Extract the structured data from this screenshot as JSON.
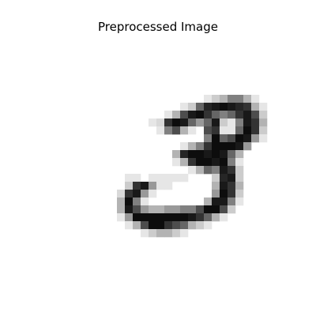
{
  "title": "Preprocessed Image",
  "image": {
    "description_icon": "handwritten-digit-icon",
    "colormap": "gray_r",
    "grid_size": 28,
    "pixels": [
      [
        0,
        0,
        0,
        0,
        0,
        0,
        0,
        0,
        0,
        0,
        0,
        0,
        0,
        0,
        0,
        0,
        0,
        0,
        0,
        0,
        0,
        0,
        0,
        0,
        0,
        0,
        0,
        0
      ],
      [
        0,
        0,
        0,
        0,
        0,
        0,
        0,
        0,
        0,
        0,
        0,
        0,
        0,
        0,
        0,
        0,
        0,
        0,
        0,
        0,
        0,
        0,
        0,
        0,
        0,
        0,
        0,
        0
      ],
      [
        0,
        0,
        0,
        0,
        0,
        0,
        0,
        0,
        0,
        0,
        0,
        0,
        0,
        0,
        0,
        0,
        0,
        0,
        0,
        0,
        0,
        0,
        0,
        0,
        0,
        0,
        0,
        0
      ],
      [
        0,
        0,
        0,
        0,
        0,
        0,
        0,
        0,
        0,
        0,
        0,
        0,
        0,
        0,
        0,
        0,
        0,
        0,
        0,
        0,
        0,
        0,
        0,
        0,
        0,
        0,
        0,
        0
      ],
      [
        0,
        0,
        0,
        0,
        0,
        0,
        0,
        0,
        0,
        0,
        0,
        0,
        0,
        0,
        0,
        0,
        0,
        0,
        0,
        0,
        0,
        0,
        0,
        0,
        0,
        0,
        0,
        0
      ],
      [
        0,
        0,
        0,
        0,
        0,
        0,
        0,
        0,
        0,
        0,
        0,
        0,
        0,
        0,
        0,
        0,
        0,
        0,
        0,
        0,
        0,
        0,
        0,
        0,
        0,
        0,
        0,
        0
      ],
      [
        0,
        0,
        0,
        0,
        0,
        0,
        0,
        0,
        0,
        0,
        0,
        0,
        0,
        0,
        0,
        0,
        0,
        0.1,
        0.2,
        0.3,
        0.5,
        0.5,
        0.3,
        0.1,
        0,
        0,
        0,
        0
      ],
      [
        0,
        0,
        0,
        0,
        0,
        0,
        0,
        0,
        0,
        0,
        0,
        0,
        0,
        0,
        0.1,
        0.2,
        0.6,
        0.85,
        0.9,
        0.95,
        0.9,
        0.85,
        0.8,
        0.3,
        0.1,
        0,
        0,
        0
      ],
      [
        0,
        0,
        0,
        0,
        0,
        0,
        0,
        0,
        0,
        0,
        0,
        0,
        0.1,
        0.3,
        0.7,
        0.9,
        0.95,
        0.8,
        0.6,
        0.5,
        0.6,
        0.8,
        0.9,
        0.7,
        0.2,
        0,
        0,
        0
      ],
      [
        0,
        0,
        0,
        0,
        0,
        0,
        0,
        0,
        0,
        0,
        0.1,
        0.15,
        0.8,
        0.95,
        0.9,
        0.6,
        0.4,
        0.6,
        0.9,
        0.2,
        0.1,
        0.5,
        0.9,
        0.8,
        0.3,
        0,
        0,
        0
      ],
      [
        0,
        0,
        0,
        0,
        0,
        0,
        0,
        0,
        0,
        0,
        0,
        0.1,
        0.5,
        0.7,
        0.3,
        0.1,
        0,
        0.7,
        0.8,
        0.1,
        0.1,
        0.6,
        0.95,
        0.8,
        0.2,
        0,
        0,
        0
      ],
      [
        0,
        0,
        0,
        0,
        0,
        0,
        0,
        0,
        0,
        0,
        0,
        0,
        0,
        0,
        0,
        0,
        0,
        0.5,
        0.95,
        0.6,
        0.7,
        0.95,
        0.9,
        0.4,
        0.1,
        0,
        0,
        0
      ],
      [
        0,
        0,
        0,
        0,
        0,
        0,
        0,
        0,
        0,
        0,
        0,
        0,
        0,
        0,
        0.1,
        0.3,
        0.5,
        0.8,
        0.95,
        0.95,
        0.95,
        0.9,
        0.4,
        0,
        0,
        0,
        0,
        0
      ],
      [
        0,
        0,
        0,
        0,
        0,
        0,
        0,
        0,
        0,
        0,
        0,
        0,
        0,
        0.3,
        0.85,
        0.95,
        0.95,
        0.9,
        0.95,
        0.9,
        0.6,
        0.3,
        0,
        0,
        0,
        0,
        0,
        0
      ],
      [
        0,
        0,
        0,
        0,
        0,
        0,
        0,
        0,
        0,
        0,
        0,
        0,
        0,
        0.1,
        0.3,
        0.8,
        0.95,
        0.95,
        0.9,
        0.95,
        0.5,
        0.1,
        0,
        0,
        0,
        0,
        0,
        0
      ],
      [
        0,
        0,
        0,
        0,
        0,
        0,
        0,
        0,
        0,
        0,
        0,
        0,
        0,
        0,
        0,
        0.1,
        0.3,
        0.6,
        0.5,
        0.9,
        0.8,
        0.2,
        0,
        0,
        0,
        0,
        0,
        0
      ],
      [
        0,
        0,
        0,
        0,
        0,
        0,
        0,
        0.1,
        0.1,
        0,
        0.1,
        0.1,
        0.1,
        0.1,
        0.1,
        0,
        0,
        0,
        0.2,
        0.85,
        0.9,
        0.2,
        0,
        0,
        0,
        0,
        0,
        0
      ],
      [
        0,
        0,
        0,
        0,
        0,
        0,
        0,
        0.2,
        0.8,
        0.9,
        0.4,
        0.1,
        0.1,
        0,
        0,
        0,
        0,
        0,
        0.3,
        0.9,
        0.8,
        0.3,
        0,
        0,
        0,
        0,
        0,
        0
      ],
      [
        0,
        0,
        0,
        0,
        0,
        0,
        0.15,
        0.8,
        0.9,
        0.4,
        0.1,
        0,
        0,
        0,
        0,
        0,
        0,
        0,
        0.4,
        0.95,
        0.8,
        0.2,
        0,
        0,
        0,
        0,
        0,
        0
      ],
      [
        0,
        0,
        0,
        0,
        0,
        0,
        0.3,
        0.95,
        0.5,
        0.1,
        0,
        0,
        0,
        0,
        0,
        0,
        0,
        0.3,
        0.9,
        0.9,
        0.5,
        0.1,
        0,
        0,
        0,
        0,
        0,
        0
      ],
      [
        0,
        0,
        0,
        0,
        0,
        0,
        0.3,
        0.9,
        0.7,
        0.4,
        0.3,
        0.3,
        0.4,
        0.4,
        0.5,
        0.5,
        0.7,
        0.95,
        0.95,
        0.7,
        0.2,
        0,
        0,
        0,
        0,
        0,
        0,
        0
      ],
      [
        0,
        0,
        0,
        0,
        0,
        0,
        0.1,
        0.4,
        0.95,
        0.95,
        0.95,
        0.95,
        0.95,
        0.95,
        0.95,
        0.9,
        0.8,
        0.6,
        0.3,
        0.1,
        0,
        0,
        0,
        0,
        0,
        0,
        0,
        0
      ],
      [
        0,
        0,
        0,
        0,
        0,
        0,
        0,
        0.1,
        0.3,
        0.7,
        0.95,
        0.95,
        0.8,
        0.7,
        0.6,
        0.3,
        0.2,
        0.1,
        0,
        0,
        0,
        0,
        0,
        0,
        0,
        0,
        0,
        0
      ],
      [
        0,
        0,
        0,
        0,
        0,
        0,
        0,
        0,
        0,
        0.1,
        0.2,
        0.3,
        0.3,
        0.2,
        0.1,
        0,
        0,
        0,
        0,
        0,
        0,
        0,
        0,
        0,
        0,
        0,
        0,
        0
      ],
      [
        0,
        0,
        0,
        0,
        0,
        0,
        0,
        0,
        0,
        0,
        0,
        0,
        0,
        0,
        0,
        0,
        0,
        0,
        0,
        0,
        0,
        0,
        0,
        0,
        0,
        0,
        0,
        0
      ],
      [
        0,
        0,
        0,
        0,
        0,
        0,
        0,
        0,
        0,
        0,
        0,
        0,
        0,
        0,
        0,
        0,
        0,
        0,
        0,
        0,
        0,
        0,
        0,
        0,
        0,
        0,
        0,
        0
      ],
      [
        0,
        0,
        0,
        0,
        0,
        0,
        0,
        0,
        0,
        0,
        0,
        0,
        0,
        0,
        0,
        0,
        0,
        0,
        0,
        0,
        0,
        0,
        0,
        0,
        0,
        0,
        0,
        0
      ],
      [
        0,
        0,
        0,
        0,
        0,
        0,
        0,
        0,
        0,
        0,
        0,
        0,
        0,
        0,
        0,
        0,
        0,
        0,
        0,
        0,
        0,
        0,
        0,
        0,
        0,
        0,
        0,
        0
      ]
    ]
  }
}
